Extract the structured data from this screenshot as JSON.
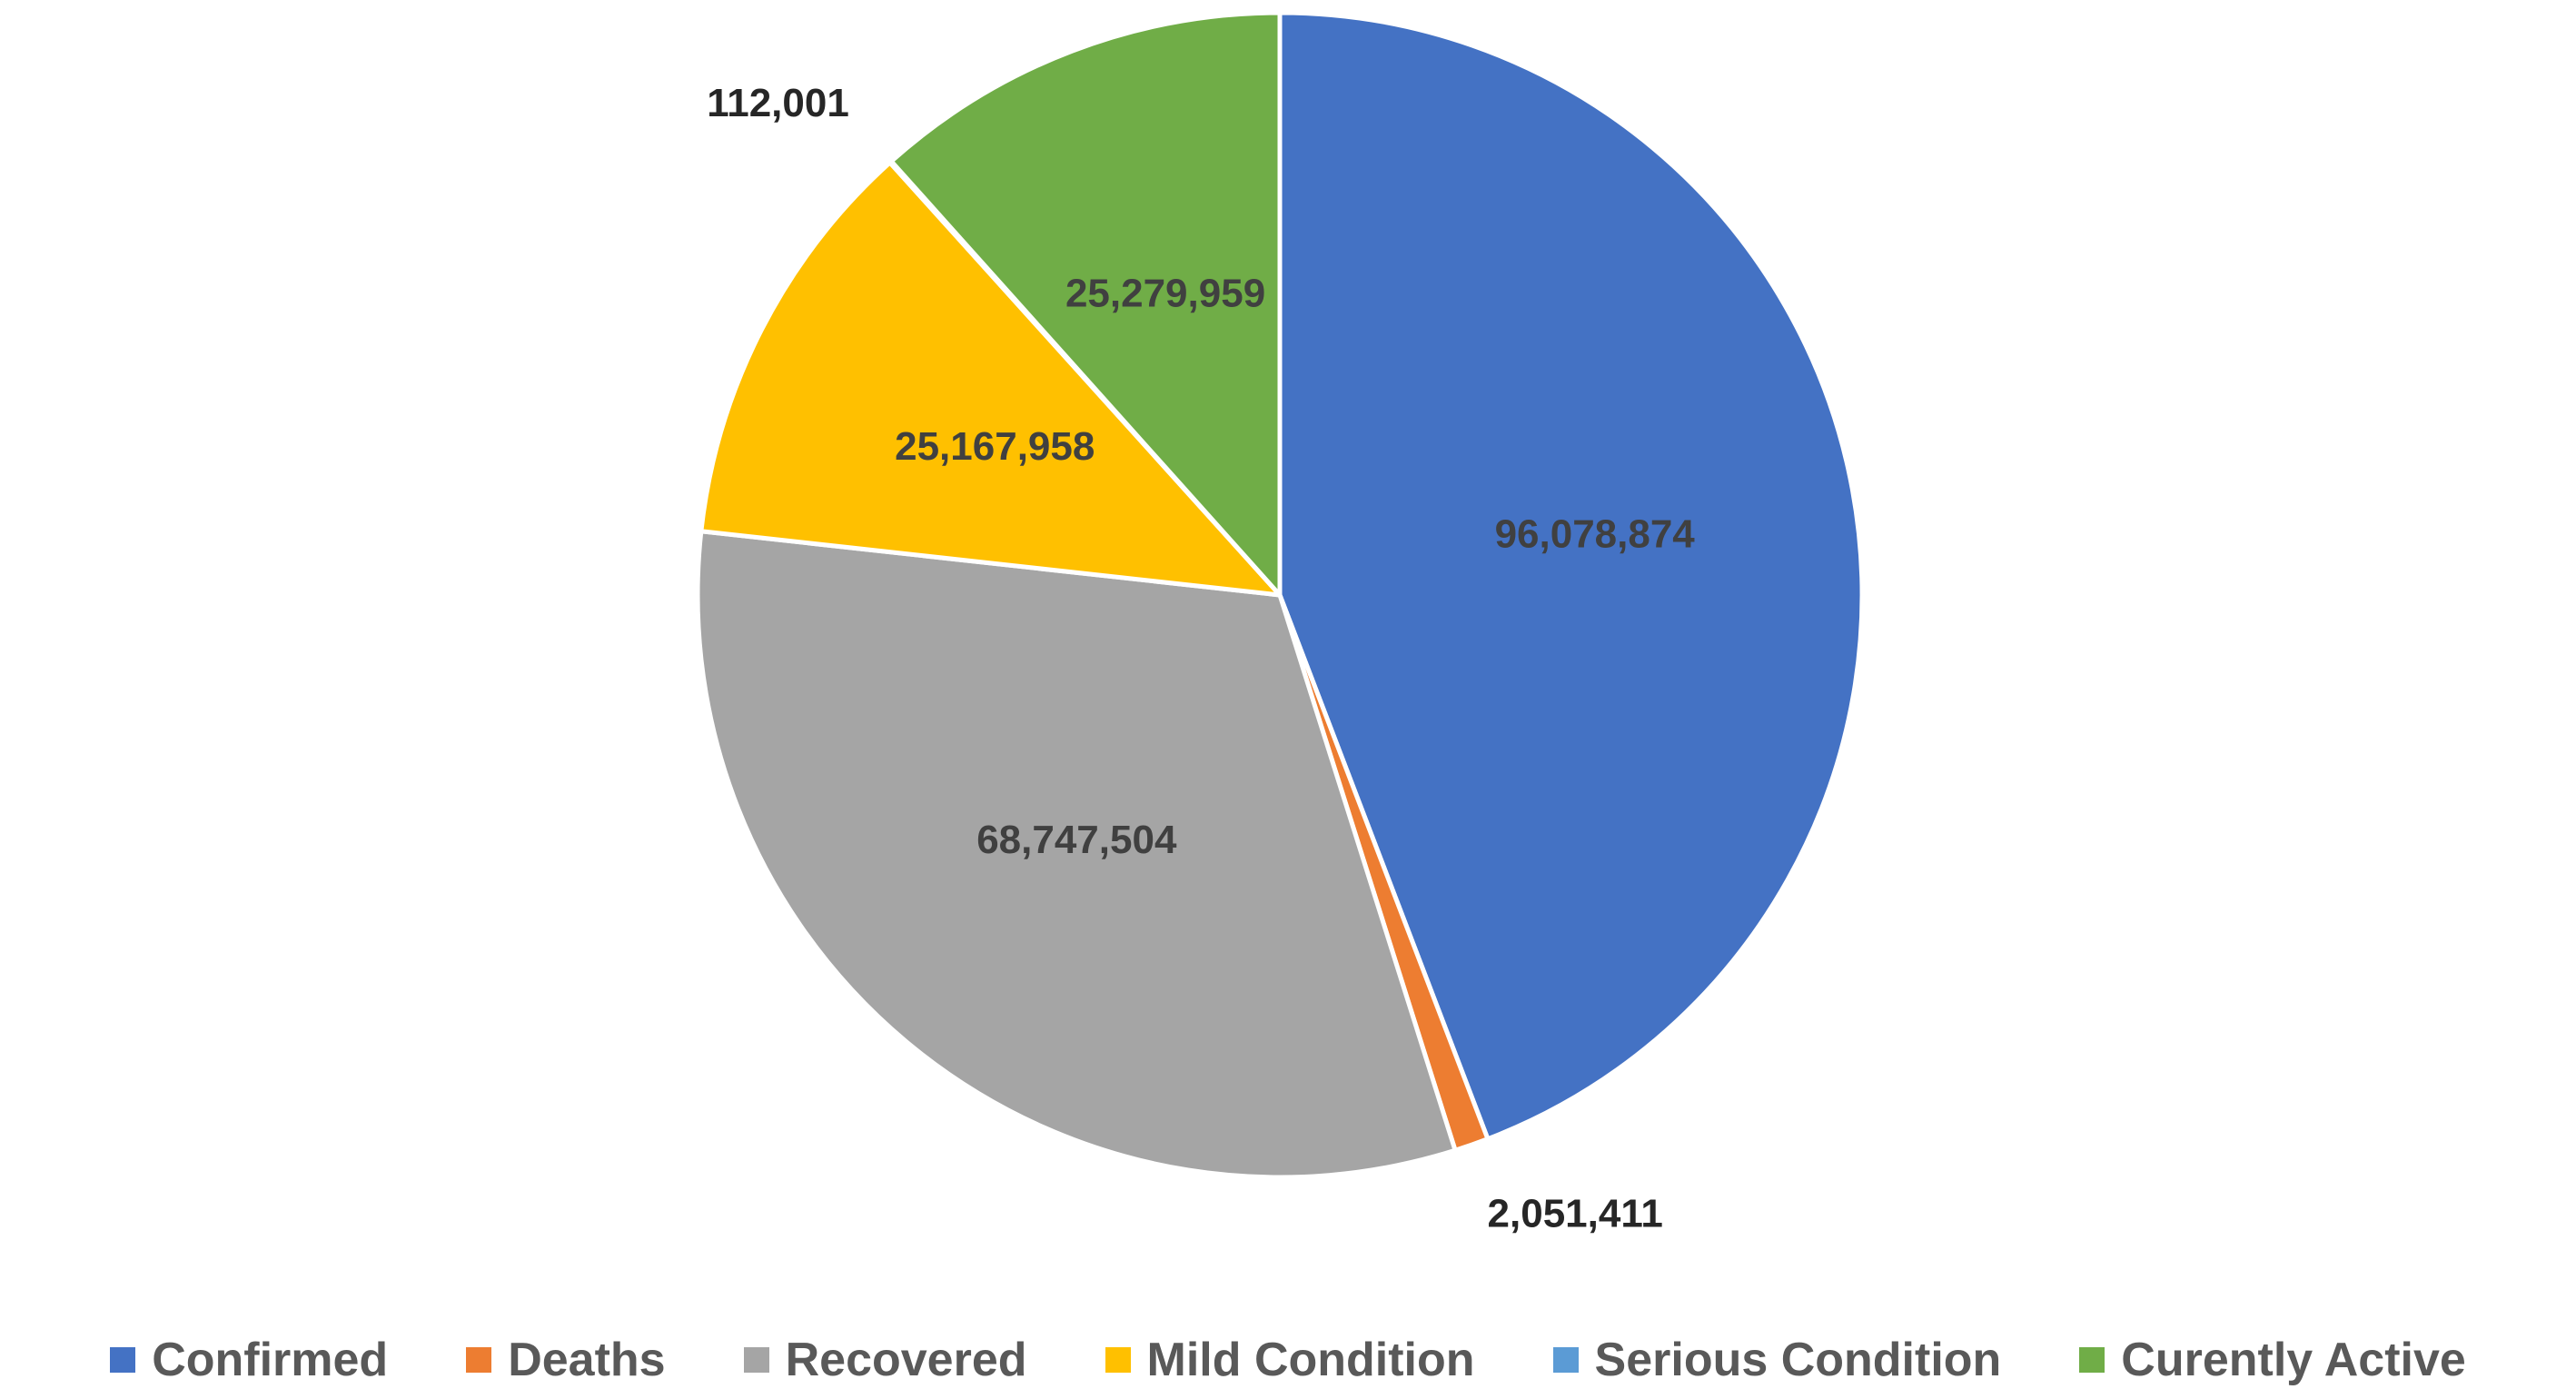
{
  "chart_data": {
    "type": "pie",
    "title": "",
    "legend_position": "bottom",
    "start_angle_deg": 0,
    "direction": "clockwise",
    "categories": [
      "Confirmed",
      "Deaths",
      "Recovered",
      "Mild Condition",
      "Serious Condition",
      "Curently Active"
    ],
    "values": [
      96078874,
      2051411,
      68747504,
      25167958,
      112001,
      25279959
    ],
    "labels": [
      "96,078,874",
      "2,051,411",
      "68,747,504",
      "25,167,958",
      "112,001",
      "25,279,959"
    ],
    "colors": [
      "#4472C4",
      "#ED7D31",
      "#A5A5A5",
      "#FFC000",
      "#5B9BD5",
      "#70AD47"
    ],
    "label_placement": [
      "inside",
      "outside",
      "inside",
      "inside",
      "outside",
      "inside"
    ]
  }
}
